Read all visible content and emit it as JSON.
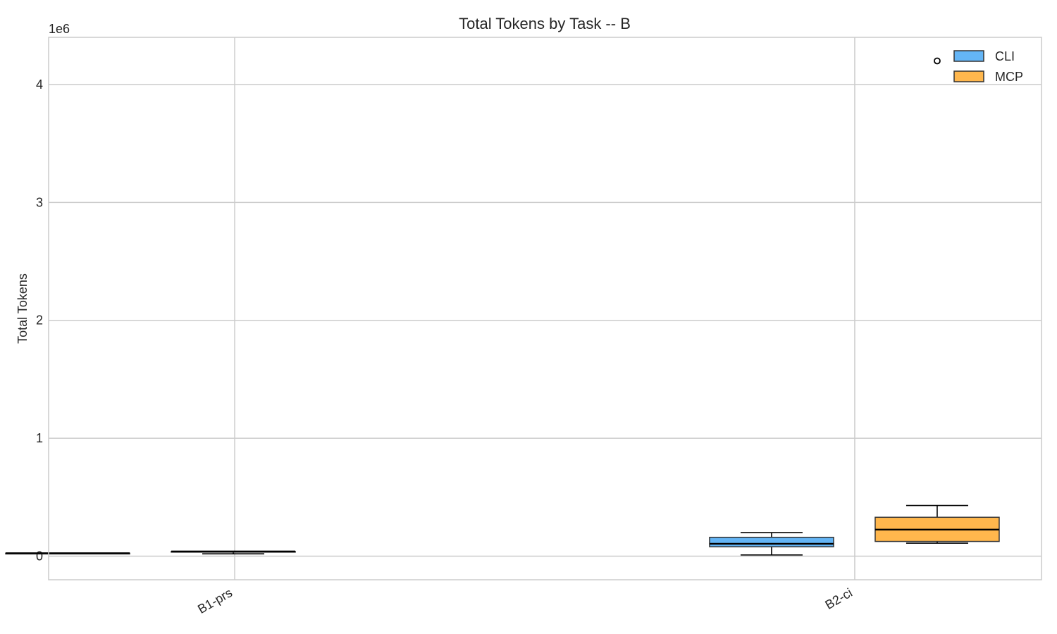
{
  "chart_data": {
    "type": "box",
    "title": "Total Tokens by Task -- B",
    "xlabel": "",
    "ylabel": "Total Tokens",
    "y_offset_label": "1e6",
    "ylim": [
      -200000,
      4400000
    ],
    "y_ticks": [
      0,
      1000000,
      2000000,
      3000000,
      4000000
    ],
    "y_tick_labels": [
      "0",
      "1",
      "2",
      "3",
      "4"
    ],
    "categories": [
      "B1-prs",
      "B2-ci"
    ],
    "grid": true,
    "legend_position": "top-right",
    "series": [
      {
        "name": "CLI",
        "color": "#64b5f6",
        "boxes": [
          {
            "category": "B1-prs",
            "whislo": 25000,
            "q1": 25000,
            "med": 25000,
            "q3": 25000,
            "whishi": 25000,
            "fliers": []
          },
          {
            "category": "B2-ci",
            "whislo": 10000,
            "q1": 80000,
            "med": 105000,
            "q3": 160000,
            "whishi": 200000,
            "fliers": []
          }
        ]
      },
      {
        "name": "MCP",
        "color": "#ffb74d",
        "boxes": [
          {
            "category": "B1-prs",
            "whislo": 20000,
            "q1": 35000,
            "med": 40000,
            "q3": 40000,
            "whishi": 40000,
            "fliers": []
          },
          {
            "category": "B2-ci",
            "whislo": 110000,
            "q1": 125000,
            "med": 225000,
            "q3": 330000,
            "whishi": 430000,
            "fliers": [
              4200000
            ]
          }
        ]
      }
    ]
  }
}
